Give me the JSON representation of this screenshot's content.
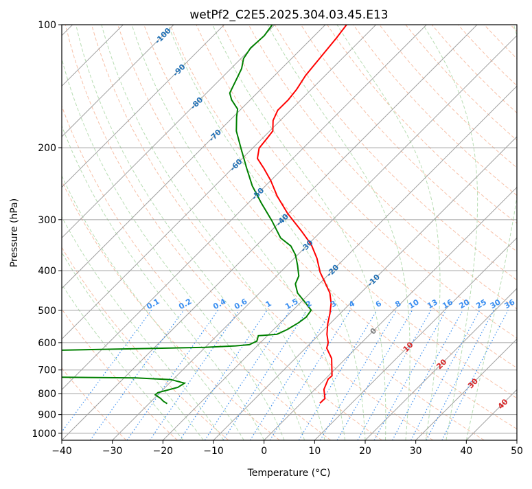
{
  "chart_data": {
    "type": "line",
    "subtype": "skew-t log-p",
    "title": "wetPf2_C2E5.2025.304.03.45.E13",
    "xlabel": "Temperature (°C)",
    "ylabel": "Pressure (hPa)",
    "xlim": [
      -40,
      50
    ],
    "ylim": [
      1040,
      100
    ],
    "x_ticks": [
      -40,
      -30,
      -20,
      -10,
      0,
      10,
      20,
      30,
      40,
      50
    ],
    "y_ticks": [
      100,
      200,
      300,
      400,
      500,
      600,
      700,
      800,
      900,
      1000
    ],
    "grid": true,
    "colors": {
      "temperature": "#ff0000",
      "dewpoint": "#008000",
      "isotherm": "#a0a0a0",
      "dry_adiabat": "#f4a582",
      "moist_adiabat": "#a6d5a0",
      "mixing_ratio": "#3a8ef0"
    },
    "isotherm_labels": [
      "-100",
      "-90",
      "-80",
      "-70",
      "-60",
      "-50",
      "-40",
      "-30",
      "-20",
      "-10",
      "0",
      "10",
      "20",
      "30",
      "40"
    ],
    "mixing_ratio_labels": [
      "0.1",
      "0.2",
      "0.4",
      "0.6",
      "1",
      "1.5",
      "2",
      "3",
      "4",
      "6",
      "8",
      "10",
      "13",
      "16",
      "20",
      "25",
      "30",
      "36"
    ],
    "series": [
      {
        "name": "Temperature",
        "points": [
          [
            100,
            -65.8
          ],
          [
            107.7,
            -65.2
          ],
          [
            118.6,
            -64.6
          ],
          [
            133,
            -63.9
          ],
          [
            144,
            -62.9
          ],
          [
            152.7,
            -62.5
          ],
          [
            162,
            -62.5
          ],
          [
            171.6,
            -61.4
          ],
          [
            182,
            -59.4
          ],
          [
            189,
            -59.1
          ],
          [
            200.5,
            -58.7
          ],
          [
            212.5,
            -57
          ],
          [
            225,
            -53.7
          ],
          [
            240.7,
            -50
          ],
          [
            263,
            -45.6
          ],
          [
            290,
            -40.1
          ],
          [
            319.6,
            -34
          ],
          [
            345.5,
            -29.3
          ],
          [
            373,
            -25.5
          ],
          [
            403.6,
            -22.1
          ],
          [
            427.7,
            -19.1
          ],
          [
            453.4,
            -16.1
          ],
          [
            480.6,
            -13.8
          ],
          [
            509.5,
            -12
          ],
          [
            540,
            -10.4
          ],
          [
            572.5,
            -8.5
          ],
          [
            600,
            -6.6
          ],
          [
            619,
            -5.8
          ],
          [
            656,
            -2.8
          ],
          [
            723,
            0.7
          ],
          [
            737,
            0.6
          ],
          [
            781,
            1.8
          ],
          [
            822,
            3.8
          ],
          [
            844,
            3.7
          ]
        ]
      },
      {
        "name": "Dewpoint",
        "points": [
          [
            100,
            -80.5
          ],
          [
            106.4,
            -79.9
          ],
          [
            114,
            -80.2
          ],
          [
            121,
            -79.5
          ],
          [
            128,
            -77.9
          ],
          [
            136,
            -76.8
          ],
          [
            147,
            -75.4
          ],
          [
            152.7,
            -73.7
          ],
          [
            160.8,
            -70.7
          ],
          [
            168.3,
            -69.3
          ],
          [
            182,
            -66.6
          ],
          [
            200.5,
            -62.3
          ],
          [
            225,
            -57.1
          ],
          [
            248,
            -52.6
          ],
          [
            273.8,
            -47.3
          ],
          [
            301.5,
            -41.9
          ],
          [
            332.6,
            -36.7
          ],
          [
            348,
            -33.1
          ],
          [
            366,
            -30.4
          ],
          [
            388.5,
            -27.9
          ],
          [
            412,
            -25.6
          ],
          [
            431,
            -24.7
          ],
          [
            453.4,
            -22.5
          ],
          [
            480.6,
            -18.8
          ],
          [
            499.6,
            -16.4
          ],
          [
            519.5,
            -16
          ],
          [
            536,
            -16.4
          ],
          [
            557.5,
            -17.3
          ],
          [
            572.5,
            -18.4
          ],
          [
            577,
            -21.8
          ],
          [
            595,
            -21
          ],
          [
            607,
            -21.8
          ],
          [
            611,
            -24.3
          ],
          [
            616,
            -30.1
          ],
          [
            621,
            -43.4
          ],
          [
            626,
            -58.1
          ],
          [
            640,
            -80
          ],
          [
            720,
            -80
          ],
          [
            729,
            -52.6
          ],
          [
            732,
            -37.6
          ],
          [
            739,
            -30.4
          ],
          [
            754,
            -27
          ],
          [
            772,
            -27.5
          ],
          [
            795,
            -30.4
          ],
          [
            805,
            -30.5
          ],
          [
            822,
            -28.7
          ],
          [
            835,
            -27.6
          ],
          [
            846,
            -26.4
          ]
        ]
      }
    ]
  }
}
